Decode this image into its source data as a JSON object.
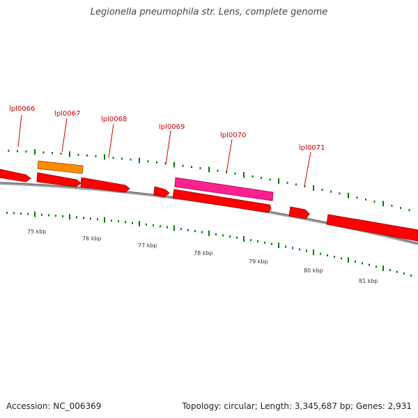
{
  "title": "Legionella pneumophila str. Lens, complete genome",
  "colors": {
    "gene": "#ff0000",
    "gene_stroke": "#b00000",
    "orange_gene": "#ff8c00",
    "pink_gene": "#ff2090",
    "tick_green": "#007a00",
    "backbone": "#808080",
    "label_red": "#cc0000"
  },
  "gene_labels": [
    "lpl0066",
    "lpl0067",
    "lpl0068",
    "lpl0069",
    "lpl0070",
    "lpl0071"
  ],
  "kbp_labels": [
    "75 kbp",
    "76 kbp",
    "77 kbp",
    "78 kbp",
    "79 kbp",
    "80 kbp",
    "81 kbp"
  ],
  "footer": {
    "accession": "Accession: NC_006369",
    "info": "Topology: circular; Length: 3,345,687 bp; Genes: 2,931"
  }
}
